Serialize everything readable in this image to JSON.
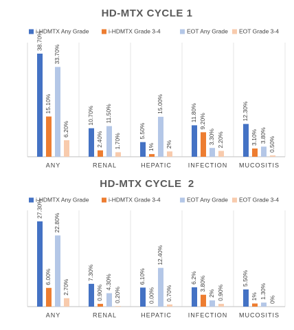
{
  "chart_data": [
    {
      "type": "bar",
      "title": "HD-MTX CYCLE 1",
      "categories": [
        "ANY",
        "RENAL",
        "HEPATIC",
        "INFECTION",
        "MUCOSITIS"
      ],
      "series": [
        {
          "name": "i-HDMTX Any Grade",
          "color": "#4472c4",
          "values": [
            38.7,
            10.7,
            5.5,
            11.8,
            12.3
          ],
          "value_labels": [
            "38.70%",
            "10.70%",
            "5.50%",
            "11.80%",
            "12.30%"
          ]
        },
        {
          "name": "i-HDMTX Grade 3-4",
          "color": "#ed7d31",
          "values": [
            15.1,
            2.4,
            1,
            9.2,
            3.1
          ],
          "value_labels": [
            "15.10%",
            "2.40%",
            "1%",
            "9.20%",
            "3.10%"
          ]
        },
        {
          "name": "EOT Any Grade",
          "color": "#b4c7e7",
          "values": [
            33.7,
            11.5,
            15,
            3.3,
            3.8
          ],
          "value_labels": [
            "33.70%",
            "11.50%",
            "15.00%",
            "3.30%",
            "3.80%"
          ]
        },
        {
          "name": "EOT Grade 3-4",
          "color": "#f8cbad",
          "values": [
            6.2,
            1.7,
            2,
            2.2,
            0.5
          ],
          "value_labels": [
            "6.20%",
            "1.70%",
            "2%",
            "2.20%",
            "0.50%"
          ]
        }
      ]
    },
    {
      "type": "bar",
      "title": "HD-MTX CYCLE  2",
      "categories": [
        "ANY",
        "RENAL",
        "HEPATIC",
        "INFECTION",
        "MUCOSITIS"
      ],
      "series": [
        {
          "name": "i-HDMTX Any Grade",
          "color": "#4472c4",
          "values": [
            27.3,
            7.3,
            6.1,
            6.2,
            5.5
          ],
          "value_labels": [
            "27.30%",
            "7.30%",
            "6.10%",
            "6.2%",
            "5.50%"
          ]
        },
        {
          "name": "i-HDMTX Grade 3-4",
          "color": "#ed7d31",
          "values": [
            6,
            0.9,
            0,
            3.8,
            1
          ],
          "value_labels": [
            "6.00%",
            "0.90%",
            "0.00%",
            "3.80%",
            "1%"
          ]
        },
        {
          "name": "EOT Any Grade",
          "color": "#b4c7e7",
          "values": [
            22.8,
            4.3,
            12.4,
            2,
            1.3
          ],
          "value_labels": [
            "22.80%",
            "4.30%",
            "12.40%",
            "2%",
            "1.30%"
          ]
        },
        {
          "name": "EOT Grade 3-4",
          "color": "#f8cbad",
          "values": [
            2.7,
            0.2,
            0.7,
            0.9,
            0
          ],
          "value_labels": [
            "2.70%",
            "0.20%",
            "0.70%",
            "0.90%",
            "0%"
          ]
        }
      ]
    }
  ]
}
